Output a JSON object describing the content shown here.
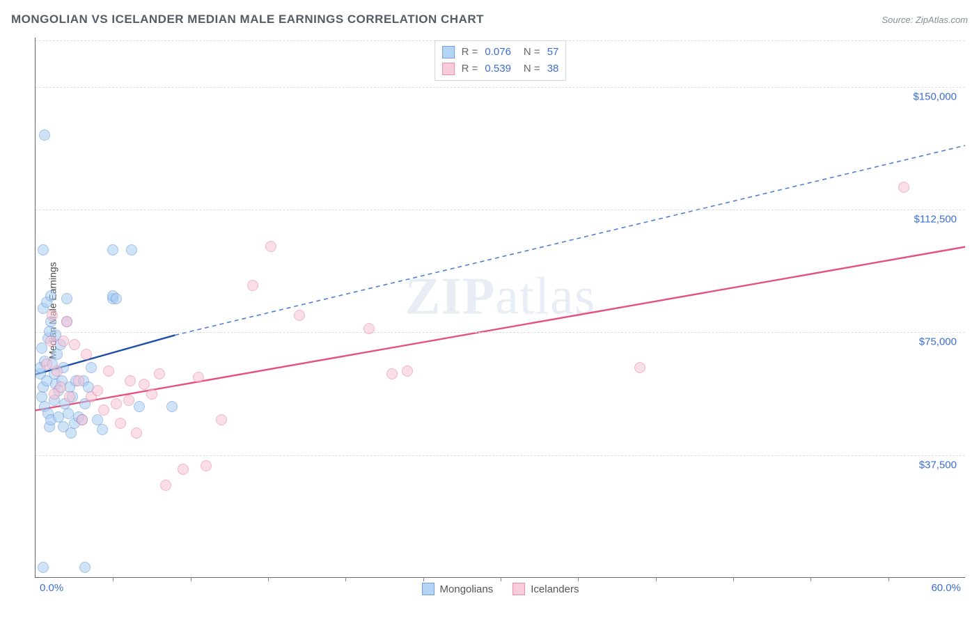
{
  "title": "MONGOLIAN VS ICELANDER MEDIAN MALE EARNINGS CORRELATION CHART",
  "source_label": "Source: ZipAtlas.com",
  "watermark": {
    "bold": "ZIP",
    "rest": "atlas"
  },
  "ylabel": "Median Male Earnings",
  "chart": {
    "type": "scatter",
    "background_color": "#ffffff",
    "grid_color": "#d9dde2",
    "axis_color": "#666666",
    "text_color": "#4a4a4a",
    "value_color": "#3b6fd6",
    "xlim": [
      0,
      60
    ],
    "ylim": [
      0,
      165000
    ],
    "x_tick_step": 5,
    "y_ticks": [
      37500,
      75000,
      112500,
      150000
    ],
    "y_tick_labels": [
      "$37,500",
      "$75,000",
      "$112,500",
      "$150,000"
    ],
    "x_min_label": "0.0%",
    "x_max_label": "60.0%",
    "marker_radius": 8,
    "marker_stroke_width": 1.2,
    "series": [
      {
        "name": "Mongolians",
        "fill": "#a9cdf2",
        "stroke": "#5a8fd6",
        "fill_opacity": 0.55,
        "R": "0.076",
        "N": "57",
        "trend": {
          "solid": {
            "x1": 0,
            "y1": 62000,
            "x2": 9,
            "y2": 74000,
            "color": "#1f4fa8",
            "width": 2.4
          },
          "dashed": {
            "x1": 9,
            "y1": 74000,
            "x2": 60,
            "y2": 132000,
            "color": "#4f7fcf",
            "width": 1.6,
            "dash": "6,5"
          }
        },
        "points": [
          [
            0.3,
            62000
          ],
          [
            0.3,
            64000
          ],
          [
            0.4,
            55000
          ],
          [
            0.4,
            70000
          ],
          [
            0.5,
            82000
          ],
          [
            0.5,
            100000
          ],
          [
            0.5,
            58000
          ],
          [
            0.6,
            52000
          ],
          [
            0.6,
            66000
          ],
          [
            0.7,
            60000
          ],
          [
            0.7,
            84000
          ],
          [
            0.8,
            73000
          ],
          [
            0.8,
            50000
          ],
          [
            0.9,
            75000
          ],
          [
            0.9,
            46000
          ],
          [
            1.0,
            48000
          ],
          [
            1.0,
            78000
          ],
          [
            1.0,
            86000
          ],
          [
            1.1,
            65000
          ],
          [
            1.2,
            54000
          ],
          [
            1.2,
            62000
          ],
          [
            1.3,
            59000
          ],
          [
            1.3,
            74000
          ],
          [
            1.4,
            68000
          ],
          [
            1.5,
            49000
          ],
          [
            1.5,
            57000
          ],
          [
            1.6,
            71000
          ],
          [
            1.7,
            60000
          ],
          [
            1.8,
            46000
          ],
          [
            1.8,
            64000
          ],
          [
            1.9,
            53000
          ],
          [
            2.0,
            85000
          ],
          [
            2.0,
            78000
          ],
          [
            2.1,
            50000
          ],
          [
            2.2,
            58000
          ],
          [
            2.3,
            44000
          ],
          [
            2.4,
            55000
          ],
          [
            2.5,
            47000
          ],
          [
            2.6,
            60000
          ],
          [
            2.8,
            49000
          ],
          [
            3.0,
            48000
          ],
          [
            3.1,
            60000
          ],
          [
            3.2,
            53000
          ],
          [
            3.4,
            58000
          ],
          [
            3.6,
            64000
          ],
          [
            4.0,
            48000
          ],
          [
            4.3,
            45000
          ],
          [
            5.0,
            85000
          ],
          [
            5.0,
            86000
          ],
          [
            5.0,
            100000
          ],
          [
            5.2,
            85000
          ],
          [
            6.2,
            100000
          ],
          [
            6.7,
            52000
          ],
          [
            8.8,
            52000
          ],
          [
            0.6,
            135000
          ],
          [
            0.5,
            3000
          ],
          [
            3.2,
            3000
          ]
        ]
      },
      {
        "name": "Icelanders",
        "fill": "#f7c4d4",
        "stroke": "#e67aa0",
        "fill_opacity": 0.55,
        "R": "0.539",
        "N": "38",
        "trend": {
          "solid": {
            "x1": 0,
            "y1": 51000,
            "x2": 60,
            "y2": 101000,
            "color": "#e5517f",
            "width": 2.4
          }
        },
        "points": [
          [
            0.7,
            65000
          ],
          [
            1.0,
            72000
          ],
          [
            1.1,
            80000
          ],
          [
            1.2,
            56000
          ],
          [
            1.4,
            63000
          ],
          [
            1.6,
            58000
          ],
          [
            1.8,
            72000
          ],
          [
            2.0,
            78000
          ],
          [
            2.2,
            55000
          ],
          [
            2.5,
            71000
          ],
          [
            2.8,
            60000
          ],
          [
            3.0,
            48000
          ],
          [
            3.3,
            68000
          ],
          [
            3.6,
            55000
          ],
          [
            4.0,
            57000
          ],
          [
            4.4,
            51000
          ],
          [
            4.7,
            63000
          ],
          [
            5.2,
            53000
          ],
          [
            5.5,
            47000
          ],
          [
            6.0,
            54000
          ],
          [
            6.1,
            60000
          ],
          [
            6.5,
            44000
          ],
          [
            7.0,
            59000
          ],
          [
            7.5,
            56000
          ],
          [
            8.0,
            62000
          ],
          [
            8.4,
            28000
          ],
          [
            9.5,
            33000
          ],
          [
            10.5,
            61000
          ],
          [
            11.0,
            34000
          ],
          [
            12.0,
            48000
          ],
          [
            14.0,
            89000
          ],
          [
            15.2,
            101000
          ],
          [
            17.0,
            80000
          ],
          [
            21.5,
            76000
          ],
          [
            23.0,
            62000
          ],
          [
            24.0,
            63000
          ],
          [
            39.0,
            64000
          ],
          [
            56.0,
            119000
          ]
        ]
      }
    ],
    "stat_legend": {
      "r_label": "R =",
      "n_label": "N ="
    },
    "series_legend_labels": [
      "Mongolians",
      "Icelanders"
    ]
  }
}
